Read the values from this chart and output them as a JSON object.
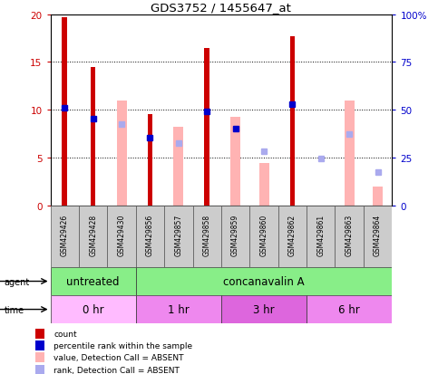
{
  "title": "GDS3752 / 1455647_at",
  "samples": [
    "GSM429426",
    "GSM429428",
    "GSM429430",
    "GSM429856",
    "GSM429857",
    "GSM429858",
    "GSM429859",
    "GSM429860",
    "GSM429862",
    "GSM429861",
    "GSM429863",
    "GSM429864"
  ],
  "count_values": [
    19.7,
    14.5,
    null,
    9.5,
    null,
    16.5,
    null,
    null,
    17.7,
    null,
    null,
    null
  ],
  "value_absent": [
    null,
    null,
    11.0,
    null,
    8.2,
    null,
    9.3,
    4.4,
    null,
    null,
    11.0,
    2.0
  ],
  "percentile_rank": [
    10.2,
    9.1,
    null,
    7.1,
    null,
    9.8,
    8.0,
    null,
    10.6,
    null,
    null,
    null
  ],
  "rank_absent": [
    null,
    null,
    8.5,
    null,
    6.5,
    null,
    null,
    5.7,
    null,
    4.9,
    7.5,
    3.5
  ],
  "count_color": "#cc0000",
  "value_absent_color": "#ffb3b3",
  "percentile_rank_color": "#0000cc",
  "rank_absent_color": "#aaaaee",
  "ylim_left": [
    0,
    20
  ],
  "ylim_right": [
    0,
    100
  ],
  "yticks_left": [
    0,
    5,
    10,
    15,
    20
  ],
  "ytick_labels_left": [
    "0",
    "5",
    "10",
    "15",
    "20"
  ],
  "yticks_right": [
    0,
    25,
    50,
    75,
    100
  ],
  "ytick_labels_right": [
    "0",
    "25",
    "50",
    "75",
    "100%"
  ],
  "agent_groups": [
    {
      "label": "untreated",
      "start": 0,
      "end": 3,
      "color": "#88ee88"
    },
    {
      "label": "concanavalin A",
      "start": 3,
      "end": 12,
      "color": "#88ee88"
    }
  ],
  "time_groups": [
    {
      "label": "0 hr",
      "start": 0,
      "end": 3,
      "color": "#ffbbff"
    },
    {
      "label": "1 hr",
      "start": 3,
      "end": 6,
      "color": "#ee88ee"
    },
    {
      "label": "3 hr",
      "start": 6,
      "end": 9,
      "color": "#dd66dd"
    },
    {
      "label": "6 hr",
      "start": 9,
      "end": 12,
      "color": "#ee88ee"
    }
  ],
  "legend_items": [
    {
      "label": "count",
      "color": "#cc0000"
    },
    {
      "label": "percentile rank within the sample",
      "color": "#0000cc"
    },
    {
      "label": "value, Detection Call = ABSENT",
      "color": "#ffb3b3"
    },
    {
      "label": "rank, Detection Call = ABSENT",
      "color": "#aaaaee"
    }
  ],
  "bar_width": 0.35,
  "count_bar_width": 0.18,
  "mark_size": 4,
  "axis_color_left": "#cc0000",
  "axis_color_right": "#0000cc",
  "sample_bg_color": "#cccccc",
  "label_fontsize": 7,
  "tick_fontsize": 7.5,
  "agent_fontsize": 8.5,
  "time_fontsize": 8.5
}
